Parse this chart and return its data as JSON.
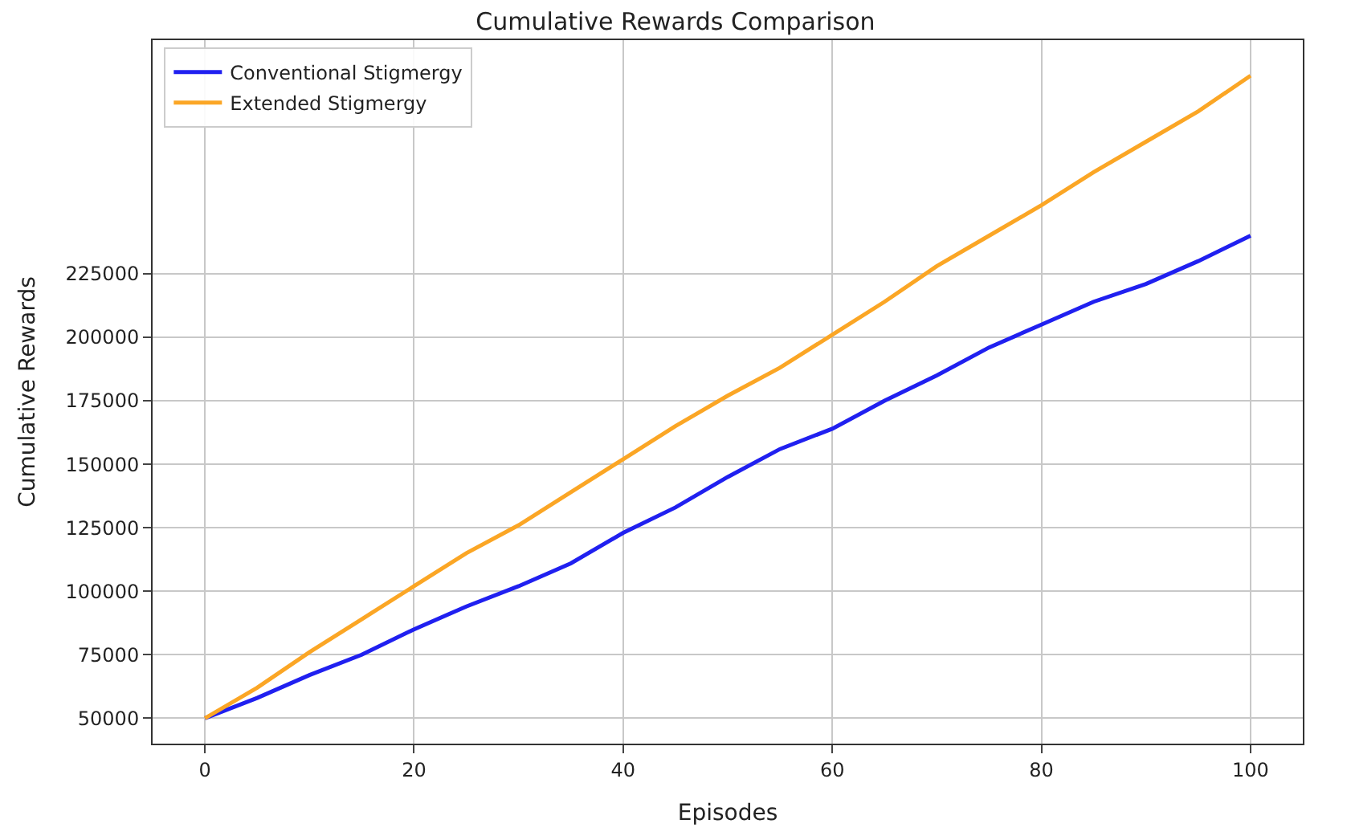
{
  "chart_data": {
    "type": "line",
    "title": "Cumulative Rewards Comparison",
    "xlabel": "Episodes",
    "ylabel": "Cumulative Rewards",
    "x": [
      0,
      5,
      10,
      15,
      20,
      25,
      30,
      35,
      40,
      45,
      50,
      55,
      60,
      65,
      70,
      75,
      80,
      85,
      90,
      95,
      100
    ],
    "series": [
      {
        "name": "Conventional Stigmergy",
        "color": "#2020f0",
        "values": [
          50000,
          58000,
          67000,
          75000,
          85000,
          94000,
          102000,
          111000,
          123000,
          133000,
          145000,
          156000,
          164000,
          175000,
          185000,
          196000,
          205000,
          214000,
          221000,
          230000,
          240000
        ]
      },
      {
        "name": "Extended Stigmergy",
        "color": "#fba625",
        "values": [
          50000,
          62000,
          76000,
          89000,
          102000,
          115000,
          126000,
          139000,
          152000,
          165000,
          177000,
          188000,
          201000,
          214000,
          228000,
          240000,
          252000,
          265000,
          277000,
          289000,
          303000
        ]
      }
    ],
    "xlim": [
      -5,
      105
    ],
    "xticks": [
      0,
      20,
      40,
      60,
      80,
      100
    ],
    "ylim": [
      40000,
      317000
    ],
    "yticks": [
      50000,
      75000,
      100000,
      125000,
      150000,
      175000,
      200000,
      225000
    ],
    "grid": true,
    "legend": "top left",
    "marker": "none",
    "line_style": "solid"
  }
}
